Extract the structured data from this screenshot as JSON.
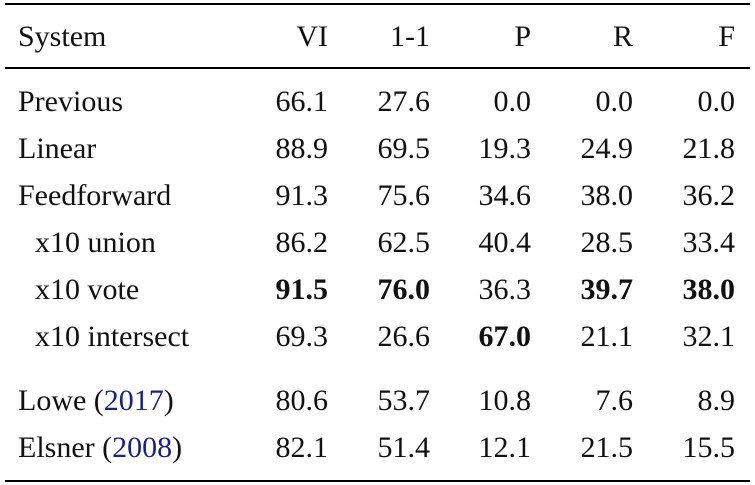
{
  "table": {
    "header": [
      "System",
      "VI",
      "1-1",
      "P",
      "R",
      "F"
    ],
    "groups": [
      {
        "rows": [
          {
            "system": "Previous",
            "cells": [
              "66.1",
              "27.6",
              "0.0",
              "0.0",
              "0.0"
            ]
          },
          {
            "system": "Linear",
            "cells": [
              "88.9",
              "69.5",
              "19.3",
              "24.9",
              "21.8"
            ]
          },
          {
            "system": "Feedforward",
            "cells": [
              "91.3",
              "75.6",
              "34.6",
              "38.0",
              "36.2"
            ]
          },
          {
            "system": "x10 union",
            "indent": true,
            "cells": [
              "86.2",
              "62.5",
              "40.4",
              "28.5",
              "33.4"
            ]
          },
          {
            "system": "x10 vote",
            "indent": true,
            "cells": [
              "91.5",
              "76.0",
              "36.3",
              "39.7",
              "38.0"
            ],
            "bold": [
              0,
              1,
              3,
              4
            ]
          },
          {
            "system": "x10 intersect",
            "indent": true,
            "cells": [
              "69.3",
              "26.6",
              "67.0",
              "21.1",
              "32.1"
            ],
            "bold": [
              2
            ]
          }
        ]
      },
      {
        "rows": [
          {
            "system": "Lowe (",
            "cite": "2017",
            "close": ")",
            "cells": [
              "80.6",
              "53.7",
              "10.8",
              "7.6",
              "8.9"
            ]
          },
          {
            "system": "Elsner (",
            "cite": "2008",
            "close": ")",
            "cells": [
              "82.1",
              "51.4",
              "12.1",
              "21.5",
              "15.5"
            ]
          }
        ]
      }
    ]
  }
}
